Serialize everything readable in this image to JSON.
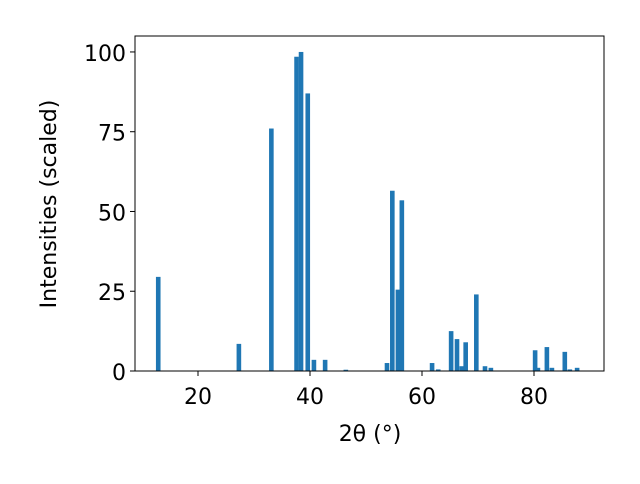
{
  "chart_data": {
    "type": "bar",
    "xlabel": "2θ (°)",
    "ylabel": "Intensities (scaled)",
    "x": [
      12.9,
      27.3,
      33.1,
      37.6,
      38.4,
      39.6,
      40.7,
      42.7,
      46.4,
      53.75,
      54.7,
      55.7,
      56.4,
      61.8,
      62.9,
      65.2,
      66.25,
      67.1,
      67.8,
      69.7,
      71.25,
      72.3,
      80.2,
      80.7,
      82.3,
      83.2,
      85.5,
      86.4,
      87.7
    ],
    "values": [
      29.5,
      8.5,
      76,
      98.5,
      100,
      87,
      3.5,
      3.5,
      0.4,
      2.5,
      56.5,
      25.5,
      53.5,
      2.5,
      0.5,
      12.5,
      10,
      1.5,
      9,
      24,
      1.5,
      1,
      6.5,
      1,
      7.5,
      1,
      6,
      0.5,
      1
    ],
    "color": "#1f77b4",
    "xlim": [
      8.75,
      92.5
    ],
    "xticks": [
      20,
      40,
      60,
      80
    ],
    "ylim": [
      0,
      105
    ],
    "yticks": [
      0,
      25,
      50,
      75,
      100
    ]
  }
}
